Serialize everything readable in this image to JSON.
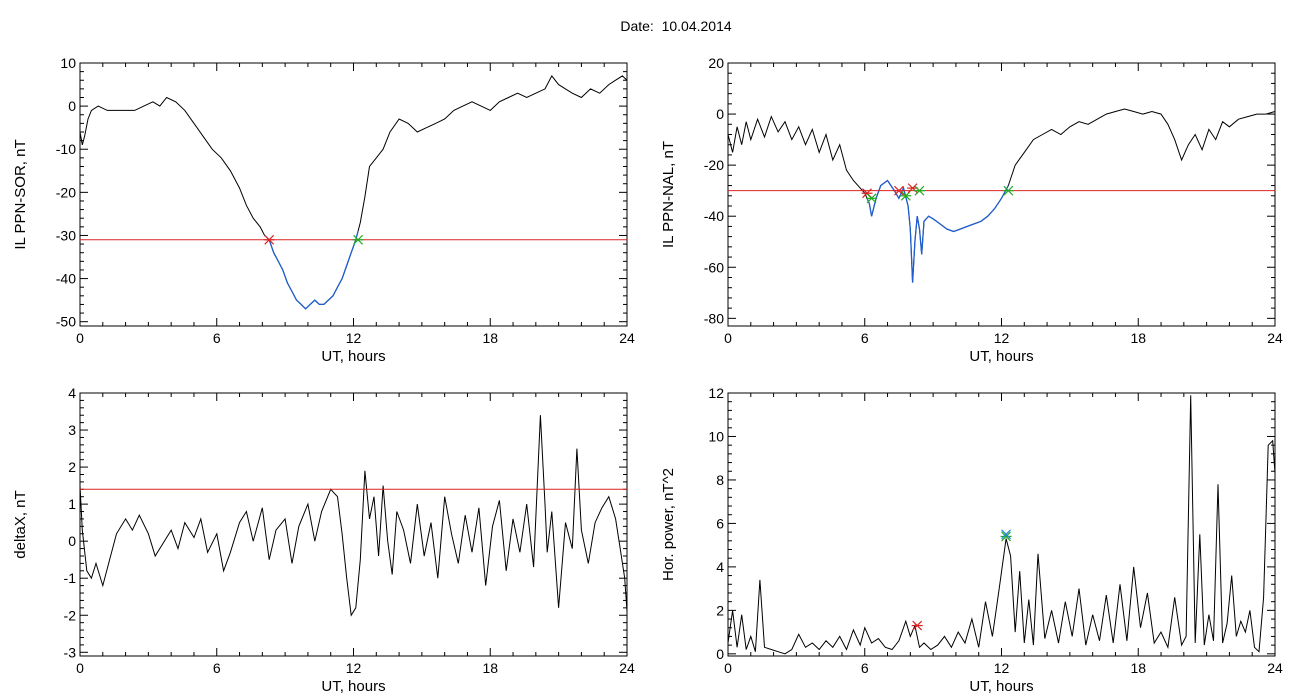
{
  "figure": {
    "title": "Date:  10.04.2014"
  },
  "colors": {
    "trace": "#000000",
    "threshold": "#dd2222",
    "below_threshold": "#1f5fd0",
    "start_marker": "#dd2222",
    "end_marker": "#22aa22",
    "peak_marker": "#2288dd"
  },
  "chart_data": [
    {
      "id": "sor",
      "type": "line",
      "xlabel": "UT, hours",
      "ylabel": "IL PPN-SOR, nT",
      "xlim": [
        0,
        24
      ],
      "ylim": [
        -51,
        10
      ],
      "xticks": [
        "0",
        "6",
        "12",
        "18",
        "24"
      ],
      "yticks": [
        "-50",
        "-40",
        "-30",
        "-20",
        "-10",
        "0",
        "10"
      ],
      "threshold": -31,
      "series": [
        {
          "x": [
            0,
            0.1,
            0.2,
            0.35,
            0.5,
            0.8,
            1.2,
            1.6,
            2.0,
            2.4,
            2.8,
            3.2,
            3.5,
            3.8,
            4.2,
            4.6,
            5.0,
            5.4,
            5.8,
            6.2,
            6.6,
            7.0,
            7.3,
            7.6,
            7.9,
            8.1,
            8.3,
            8.5,
            8.7,
            8.9,
            9.1,
            9.3,
            9.5,
            9.7,
            9.9,
            10.1,
            10.3,
            10.5,
            10.7,
            10.9,
            11.1,
            11.3,
            11.5,
            11.7,
            11.9,
            12.1,
            12.3,
            12.5,
            12.7,
            13.0,
            13.3,
            13.6,
            14.0,
            14.4,
            14.8,
            15.2,
            15.6,
            16.0,
            16.4,
            16.8,
            17.2,
            17.6,
            18.0,
            18.4,
            18.8,
            19.2,
            19.6,
            20.0,
            20.4,
            20.7,
            21.0,
            21.3,
            21.6,
            22.0,
            22.4,
            22.8,
            23.2,
            23.5,
            23.8,
            24.0
          ],
          "y": [
            -6,
            -9,
            -7,
            -3,
            -1,
            0,
            -1,
            -1,
            -1,
            -1,
            0,
            1,
            0,
            2,
            1,
            -1,
            -4,
            -7,
            -10,
            -12,
            -15,
            -19,
            -23,
            -26,
            -28,
            -30,
            -31,
            -34,
            -36,
            -38,
            -41,
            -43,
            -45,
            -46,
            -47,
            -46,
            -45,
            -46,
            -46,
            -45,
            -44,
            -42,
            -40,
            -37,
            -34,
            -31,
            -27,
            -21,
            -14,
            -12,
            -10,
            -6,
            -3,
            -4,
            -6,
            -5,
            -4,
            -3,
            -1,
            0,
            1,
            0,
            -1,
            1,
            2,
            3,
            2,
            3,
            4,
            7,
            5,
            4,
            3,
            2,
            4,
            3,
            5,
            6,
            7,
            6
          ]
        }
      ],
      "markers": [
        {
          "x": 8.3,
          "y": -31,
          "kind": "start"
        },
        {
          "x": 12.2,
          "y": -31,
          "kind": "end"
        }
      ]
    },
    {
      "id": "nal",
      "type": "line",
      "xlabel": "UT, hours",
      "ylabel": "IL PPN-NAL, nT",
      "xlim": [
        0,
        24
      ],
      "ylim": [
        -83,
        20
      ],
      "xticks": [
        "0",
        "6",
        "12",
        "18",
        "24"
      ],
      "yticks": [
        "-80",
        "-60",
        "-40",
        "-20",
        "0",
        "20"
      ],
      "threshold": -30,
      "series": [
        {
          "x": [
            0,
            0.2,
            0.4,
            0.6,
            0.8,
            1.0,
            1.3,
            1.6,
            1.9,
            2.2,
            2.5,
            2.8,
            3.1,
            3.4,
            3.7,
            4.0,
            4.3,
            4.6,
            4.9,
            5.2,
            5.5,
            5.8,
            6.0,
            6.2,
            6.3,
            6.5,
            6.7,
            7.0,
            7.3,
            7.5,
            7.7,
            7.9,
            8.0,
            8.1,
            8.2,
            8.3,
            8.4,
            8.5,
            8.6,
            8.8,
            9.0,
            9.3,
            9.6,
            9.9,
            10.2,
            10.5,
            10.8,
            11.1,
            11.4,
            11.7,
            12.0,
            12.3,
            12.6,
            13.0,
            13.4,
            13.8,
            14.2,
            14.6,
            15.0,
            15.4,
            15.8,
            16.2,
            16.6,
            17.0,
            17.4,
            17.8,
            18.2,
            18.6,
            19.0,
            19.3,
            19.6,
            19.9,
            20.2,
            20.5,
            20.8,
            21.1,
            21.4,
            21.7,
            22.0,
            22.4,
            22.8,
            23.2,
            23.6,
            24.0
          ],
          "y": [
            -8,
            -15,
            -5,
            -12,
            -3,
            -10,
            -2,
            -9,
            -1,
            -7,
            -3,
            -10,
            -5,
            -12,
            -6,
            -15,
            -8,
            -18,
            -12,
            -22,
            -26,
            -29,
            -31,
            -35,
            -40,
            -33,
            -28,
            -26,
            -30,
            -33,
            -29,
            -36,
            -45,
            -66,
            -50,
            -40,
            -45,
            -55,
            -42,
            -40,
            -41,
            -43,
            -45,
            -46,
            -45,
            -44,
            -43,
            -42,
            -40,
            -37,
            -33,
            -28,
            -20,
            -15,
            -10,
            -8,
            -6,
            -8,
            -5,
            -3,
            -4,
            -2,
            0,
            1,
            2,
            1,
            0,
            1,
            0,
            -4,
            -10,
            -18,
            -12,
            -8,
            -14,
            -6,
            -10,
            -3,
            -5,
            -2,
            -1,
            0,
            0,
            1
          ]
        }
      ],
      "markers": [
        {
          "x": 6.1,
          "y": -31,
          "kind": "start"
        },
        {
          "x": 6.3,
          "y": -33,
          "kind": "end"
        },
        {
          "x": 7.5,
          "y": -30,
          "kind": "start"
        },
        {
          "x": 7.8,
          "y": -32,
          "kind": "end"
        },
        {
          "x": 8.1,
          "y": -29,
          "kind": "start"
        },
        {
          "x": 8.4,
          "y": -30,
          "kind": "end"
        },
        {
          "x": 12.3,
          "y": -30,
          "kind": "end"
        }
      ]
    },
    {
      "id": "deltax",
      "type": "line",
      "xlabel": "UT, hours",
      "ylabel": "deltaX, nT",
      "xlim": [
        0,
        24
      ],
      "ylim": [
        -3.1,
        4
      ],
      "xticks": [
        "0",
        "6",
        "12",
        "18",
        "24"
      ],
      "yticks": [
        "-3",
        "-2",
        "-1",
        "0",
        "1",
        "2",
        "3",
        "4"
      ],
      "threshold": 1.4,
      "series": [
        {
          "x": [
            0,
            0.1,
            0.3,
            0.5,
            0.7,
            1.0,
            1.3,
            1.6,
            2.0,
            2.3,
            2.6,
            3.0,
            3.3,
            3.6,
            4.0,
            4.3,
            4.6,
            5.0,
            5.3,
            5.6,
            6.0,
            6.3,
            6.6,
            7.0,
            7.3,
            7.6,
            8.0,
            8.3,
            8.6,
            9.0,
            9.3,
            9.6,
            10.0,
            10.3,
            10.6,
            11.0,
            11.3,
            11.5,
            11.7,
            11.9,
            12.1,
            12.3,
            12.5,
            12.7,
            12.9,
            13.1,
            13.3,
            13.5,
            13.7,
            13.9,
            14.2,
            14.5,
            14.8,
            15.1,
            15.4,
            15.7,
            16.0,
            16.3,
            16.6,
            16.9,
            17.2,
            17.5,
            17.8,
            18.1,
            18.4,
            18.7,
            19.0,
            19.3,
            19.6,
            19.9,
            20.2,
            20.4,
            20.5,
            20.7,
            21.0,
            21.3,
            21.6,
            21.8,
            22.0,
            22.3,
            22.6,
            22.9,
            23.2,
            23.5,
            23.7,
            23.9,
            24.0
          ],
          "y": [
            1.5,
            0.3,
            -0.8,
            -1.0,
            -0.6,
            -1.2,
            -0.5,
            0.2,
            0.6,
            0.3,
            0.7,
            0.2,
            -0.4,
            -0.1,
            0.3,
            -0.2,
            0.5,
            0.1,
            0.6,
            -0.3,
            0.2,
            -0.8,
            -0.3,
            0.5,
            0.8,
            0.0,
            0.9,
            -0.5,
            0.3,
            0.6,
            -0.6,
            0.4,
            1.0,
            0.0,
            0.8,
            1.4,
            1.2,
            0.2,
            -1.0,
            -2.0,
            -1.8,
            -0.5,
            1.9,
            0.6,
            1.2,
            -0.4,
            1.5,
            0.0,
            -0.9,
            0.8,
            0.3,
            -0.6,
            1.0,
            -0.4,
            0.5,
            -1.0,
            1.2,
            0.2,
            -0.6,
            0.7,
            -0.3,
            0.9,
            -1.2,
            0.4,
            1.1,
            -0.8,
            0.6,
            -0.3,
            1.0,
            -0.7,
            3.4,
            1.0,
            -0.3,
            0.8,
            -1.8,
            0.5,
            -0.2,
            2.5,
            0.3,
            -0.6,
            0.5,
            0.9,
            1.2,
            0.6,
            -0.2,
            -1.0,
            -1.9
          ]
        }
      ],
      "markers": []
    },
    {
      "id": "power",
      "type": "line",
      "xlabel": "UT, hours",
      "ylabel": "Hor. power, nT^2",
      "xlim": [
        0,
        24
      ],
      "ylim": [
        -0.1,
        12
      ],
      "xticks": [
        "0",
        "6",
        "12",
        "18",
        "24"
      ],
      "yticks": [
        "0",
        "2",
        "4",
        "6",
        "8",
        "10",
        "12"
      ],
      "threshold": null,
      "series": [
        {
          "x": [
            0,
            0.2,
            0.4,
            0.6,
            0.8,
            1.0,
            1.2,
            1.4,
            1.6,
            1.9,
            2.2,
            2.5,
            2.8,
            3.1,
            3.4,
            3.7,
            4.0,
            4.3,
            4.6,
            4.9,
            5.2,
            5.5,
            5.8,
            6.0,
            6.3,
            6.6,
            6.9,
            7.2,
            7.5,
            7.8,
            8.0,
            8.2,
            8.4,
            8.6,
            8.9,
            9.2,
            9.5,
            9.8,
            10.1,
            10.4,
            10.7,
            11.0,
            11.3,
            11.6,
            11.9,
            12.2,
            12.4,
            12.6,
            12.8,
            13.0,
            13.2,
            13.4,
            13.6,
            13.9,
            14.2,
            14.5,
            14.8,
            15.1,
            15.4,
            15.7,
            16.0,
            16.3,
            16.6,
            16.9,
            17.2,
            17.5,
            17.8,
            18.1,
            18.4,
            18.7,
            19.0,
            19.3,
            19.6,
            19.9,
            20.1,
            20.3,
            20.5,
            20.7,
            20.9,
            21.1,
            21.3,
            21.5,
            21.7,
            21.9,
            22.1,
            22.3,
            22.5,
            22.7,
            22.9,
            23.1,
            23.3,
            23.5,
            23.7,
            23.9,
            24.0
          ],
          "y": [
            0.5,
            2.0,
            0.3,
            1.8,
            0.2,
            0.8,
            0.1,
            3.4,
            0.3,
            0.2,
            0.1,
            0.0,
            0.2,
            0.9,
            0.3,
            0.5,
            0.2,
            0.6,
            0.3,
            0.8,
            0.2,
            1.1,
            0.4,
            1.2,
            0.5,
            0.7,
            0.3,
            0.2,
            0.6,
            1.5,
            0.8,
            1.3,
            0.3,
            0.5,
            0.2,
            0.4,
            0.8,
            0.3,
            1.0,
            0.5,
            1.6,
            0.3,
            2.4,
            0.8,
            3.0,
            5.3,
            4.5,
            1.0,
            3.8,
            0.5,
            2.5,
            0.4,
            4.6,
            0.7,
            2.0,
            0.5,
            2.4,
            0.8,
            3.0,
            0.4,
            1.8,
            0.6,
            2.7,
            0.5,
            3.2,
            0.6,
            4.0,
            1.2,
            2.8,
            0.5,
            1.0,
            0.3,
            2.6,
            0.4,
            0.8,
            11.9,
            0.5,
            5.5,
            0.4,
            1.8,
            0.6,
            7.8,
            0.5,
            1.4,
            3.6,
            0.8,
            1.5,
            1.0,
            2.0,
            0.3,
            0.1,
            2.6,
            9.6,
            9.8,
            8.3
          ]
        }
      ],
      "markers": [
        {
          "x": 8.3,
          "y": 1.3,
          "kind": "start"
        },
        {
          "x": 12.2,
          "y": 5.4,
          "kind": "end"
        },
        {
          "x": 12.2,
          "y": 5.5,
          "kind": "peak"
        }
      ]
    }
  ]
}
